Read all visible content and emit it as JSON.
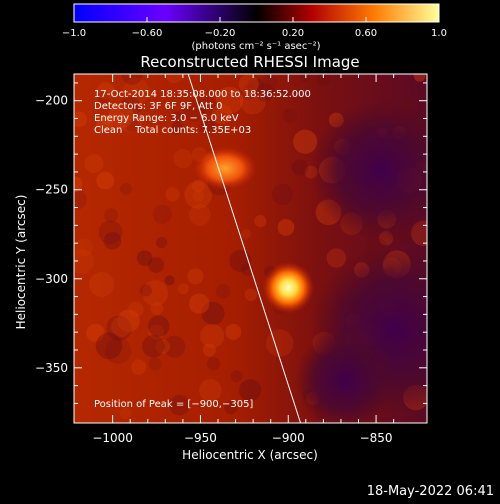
{
  "chart_data": {
    "type": "heatmap",
    "title": "Reconstructed RHESSI Image",
    "xlabel": "Heliocentric X (arcsec)",
    "ylabel": "Heliocentric Y (arcsec)",
    "xlim": [
      -1022,
      -821
    ],
    "ylim": [
      -381,
      -185
    ],
    "xticks": [
      -1000,
      -950,
      -900,
      -850
    ],
    "xtick_labels": [
      "−1000",
      "−950",
      "−900",
      "−850"
    ],
    "yticks": [
      -200,
      -250,
      -300,
      -350
    ],
    "ytick_labels": [
      "−200",
      "−250",
      "−300",
      "−350"
    ],
    "colorbar": {
      "range": [
        -1.0,
        1.0
      ],
      "ticks": [
        -1.0,
        -0.6,
        -0.2,
        0.2,
        0.6,
        1.0
      ],
      "tick_labels": [
        "−1.0",
        "−0.60",
        "−0.20",
        "0.20",
        "0.60",
        "1.0"
      ],
      "label": "(photons cm⁻² s⁻¹ asec⁻²)",
      "colors": [
        "#0000ff",
        "#6a00ff",
        "#000000",
        "#b00000",
        "#ff7a00",
        "#ffff9a"
      ]
    },
    "annotations": [
      "17-Oct-2014 18:35:08.000 to 18:36:52.000",
      "Detectors: 3F 6F 9F, Att 0",
      "Energy Range: 3.0 − 6.0 keV",
      "Clean    Total counts: 7.35E+03",
      "Position of Peak = [−900,−305]"
    ],
    "peak": {
      "x": -900,
      "y": -305
    },
    "secondary_source": {
      "x": -936,
      "y": -238
    },
    "limb_line": [
      {
        "x": -957,
        "y": -185
      },
      {
        "x": -893,
        "y": -381
      }
    ],
    "grid": false
  },
  "footer": {
    "timestamp": "18-May-2022 06:41"
  }
}
